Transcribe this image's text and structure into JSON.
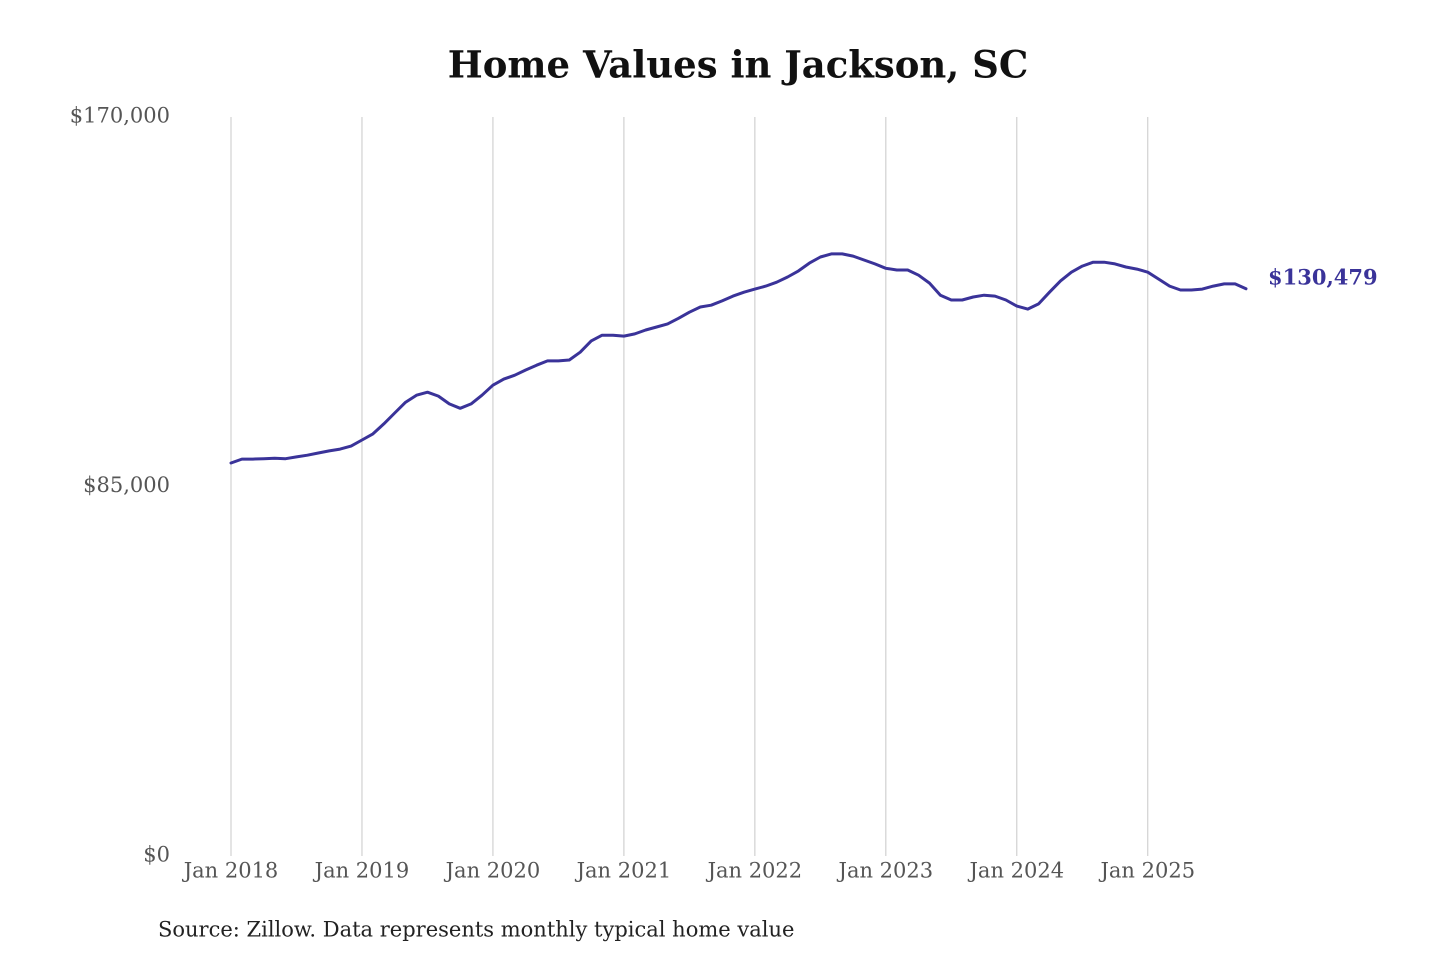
{
  "chart_data": {
    "type": "line",
    "title": "Home Values in Jackson, SC",
    "source": "Source: Zillow. Data represents monthly typical home value",
    "annotation": "$130,479",
    "x": [
      "2018-01",
      "2018-02",
      "2018-03",
      "2018-04",
      "2018-05",
      "2018-06",
      "2018-07",
      "2018-08",
      "2018-09",
      "2018-10",
      "2018-11",
      "2018-12",
      "2019-01",
      "2019-02",
      "2019-03",
      "2019-04",
      "2019-05",
      "2019-06",
      "2019-07",
      "2019-08",
      "2019-09",
      "2019-10",
      "2019-11",
      "2019-12",
      "2020-01",
      "2020-02",
      "2020-03",
      "2020-04",
      "2020-05",
      "2020-06",
      "2020-07",
      "2020-08",
      "2020-09",
      "2020-10",
      "2020-11",
      "2020-12",
      "2021-01",
      "2021-02",
      "2021-03",
      "2021-04",
      "2021-05",
      "2021-06",
      "2021-07",
      "2021-08",
      "2021-09",
      "2021-10",
      "2021-11",
      "2021-12",
      "2022-01",
      "2022-02",
      "2022-03",
      "2022-04",
      "2022-05",
      "2022-06",
      "2022-07",
      "2022-08",
      "2022-09",
      "2022-10",
      "2022-11",
      "2022-12",
      "2023-01",
      "2023-02",
      "2023-03",
      "2023-04",
      "2023-05",
      "2023-06",
      "2023-07",
      "2023-08",
      "2023-09",
      "2023-10",
      "2023-11",
      "2023-12",
      "2024-01",
      "2024-02",
      "2024-03",
      "2024-04",
      "2024-05",
      "2024-06",
      "2024-07",
      "2024-08",
      "2024-09",
      "2024-10",
      "2024-11",
      "2024-12",
      "2025-01",
      "2025-02",
      "2025-03",
      "2025-04",
      "2025-05",
      "2025-06",
      "2025-07",
      "2025-08",
      "2025-09",
      "2025-10"
    ],
    "series": [
      {
        "name": "Home value",
        "color": "#3a3399",
        "values": [
          90400,
          91300,
          91300,
          91400,
          91500,
          91400,
          91800,
          92200,
          92700,
          93200,
          93600,
          94300,
          95700,
          97100,
          99400,
          101900,
          104400,
          106000,
          106700,
          105800,
          104000,
          103000,
          104000,
          106000,
          108300,
          109700,
          110600,
          111800,
          112900,
          113900,
          113900,
          114100,
          115900,
          118500,
          119800,
          119800,
          119600,
          120100,
          121000,
          121700,
          122400,
          123700,
          125100,
          126300,
          126700,
          127700,
          128800,
          129700,
          130400,
          131100,
          132000,
          133200,
          134600,
          136400,
          137800,
          138500,
          138500,
          138000,
          137100,
          136200,
          135200,
          134800,
          134800,
          133600,
          131800,
          129000,
          127900,
          127900,
          128600,
          129000,
          128800,
          127900,
          126500,
          125800,
          127000,
          129700,
          132300,
          134300,
          135700,
          136600,
          136600,
          136200,
          135500,
          135000,
          134300,
          132700,
          131100,
          130200,
          130200,
          130400,
          131100,
          131600,
          131600,
          130479
        ]
      }
    ],
    "xlim": [
      "2018-01",
      "2025-10"
    ],
    "xticks": [
      {
        "value": "2018-01",
        "label": "Jan 2018"
      },
      {
        "value": "2019-01",
        "label": "Jan 2019"
      },
      {
        "value": "2020-01",
        "label": "Jan 2020"
      },
      {
        "value": "2021-01",
        "label": "Jan 2021"
      },
      {
        "value": "2022-01",
        "label": "Jan 2022"
      },
      {
        "value": "2023-01",
        "label": "Jan 2023"
      },
      {
        "value": "2024-01",
        "label": "Jan 2024"
      },
      {
        "value": "2025-01",
        "label": "Jan 2025"
      }
    ],
    "ylim": [
      0,
      170000
    ],
    "yticks": [
      {
        "value": 0,
        "label": "$0"
      },
      {
        "value": 85000,
        "label": "$85,000"
      },
      {
        "value": 170000,
        "label": "$170,000"
      }
    ],
    "grid": true
  }
}
